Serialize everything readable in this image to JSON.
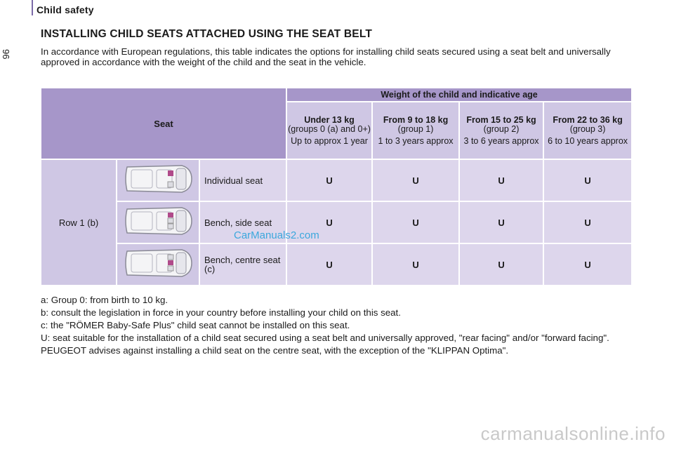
{
  "header": {
    "section": "Child safety",
    "page_number": "96"
  },
  "title": "INSTALLING CHILD SEATS ATTACHED USING THE SEAT BELT",
  "intro": "In accordance with European regulations, this table indicates the options for installing child seats secured using a seat belt and universally approved in accordance with the weight of the child and the seat in the vehicle.",
  "table": {
    "seat_header": "Seat",
    "weight_header": "Weight of the child and indicative age",
    "groups": [
      {
        "weight": "Under 13 kg",
        "group": "(groups 0 (a) and 0+)",
        "age": "Up to approx 1 year"
      },
      {
        "weight": "From 9 to 18 kg",
        "group": "(group 1)",
        "age": "1 to 3 years approx"
      },
      {
        "weight": "From 15 to 25 kg",
        "group": "(group 2)",
        "age": "3 to 6 years approx"
      },
      {
        "weight": "From 22 to 36 kg",
        "group": "(group 3)",
        "age": "6 to 10 years approx"
      }
    ],
    "row_label": "Row 1 (b)",
    "rows": [
      {
        "seat": "Individual seat",
        "values": [
          "U",
          "U",
          "U",
          "U"
        ]
      },
      {
        "seat": "Bench, side seat",
        "values": [
          "U",
          "U",
          "U",
          "U"
        ]
      },
      {
        "seat": "Bench, centre seat (c)",
        "values": [
          "U",
          "U",
          "U",
          "U"
        ]
      }
    ]
  },
  "watermark": "CarManuals2.com",
  "notes": {
    "a": "a: Group 0: from birth to 10 kg.",
    "b": "b: consult the legislation in force in your country before installing your child on this seat.",
    "c": "c: the \"RÖMER Baby-Safe Plus\" child seat cannot be installed on this seat.",
    "u": "U: seat suitable for the installation of a child seat secured using a seat belt and universally approved, \"rear facing\" and/or \"forward facing\".",
    "advice": "PEUGEOT advises against installing a child seat on the centre seat, with the exception of the \"KLIPPAN Optima\"."
  },
  "footer_watermark": "carmanualsonline.info"
}
